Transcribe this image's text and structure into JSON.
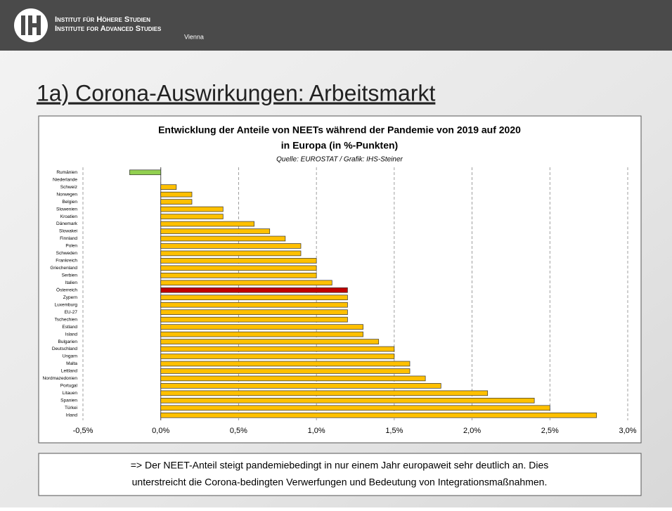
{
  "header": {
    "line1": "Institut für Höhere Studien",
    "line2": "Institute for Advanced Studies",
    "line3": "Vienna"
  },
  "slide_title": "1a) Corona-Auswirkungen: Arbeitsmarkt",
  "chart_data": {
    "type": "hbar",
    "title": "Entwicklung der Anteile von NEETs während der Pandemie von 2019 auf 2020",
    "title_line2": "in Europa (in %-Punkten)",
    "subtitle": "Quelle: EUROSTAT / Grafik: IHS-Steiner",
    "categories": [
      "Rumänien",
      "Niederlande",
      "Schweiz",
      "Norwegen",
      "Belgien",
      "Slowenien",
      "Kroatien",
      "Dänemark",
      "Slowakei",
      "Finnland",
      "Polen",
      "Schweden",
      "Frankreich",
      "Griechenland",
      "Serbien",
      "Italien",
      "Österreich",
      "Zypern",
      "Luxemburg",
      "EU-27",
      "Tschechien",
      "Estland",
      "Island",
      "Bulgarien",
      "Deutschland",
      "Ungarn",
      "Malta",
      "Lettland",
      "Nordmazedonien",
      "Portugal",
      "Litauen",
      "Spanien",
      "Türkei",
      "Irland"
    ],
    "values": [
      -0.2,
      0,
      0.1,
      0.2,
      0.2,
      0.4,
      0.4,
      0.6,
      0.7,
      0.8,
      0.9,
      0.9,
      1.0,
      1.0,
      1.0,
      1.1,
      1.2,
      1.2,
      1.2,
      1.2,
      1.2,
      1.3,
      1.3,
      1.4,
      1.5,
      1.5,
      1.6,
      1.6,
      1.7,
      1.8,
      2.1,
      2.4,
      2.5,
      2.8
    ],
    "colors": [
      "#92d050",
      "#ffc000",
      "#ffc000",
      "#ffc000",
      "#ffc000",
      "#ffc000",
      "#ffc000",
      "#ffc000",
      "#ffc000",
      "#ffc000",
      "#ffc000",
      "#ffc000",
      "#ffc000",
      "#ffc000",
      "#ffc000",
      "#ffc000",
      "#c00000",
      "#ffc000",
      "#ffc000",
      "#ffc000",
      "#ffc000",
      "#ffc000",
      "#ffc000",
      "#ffc000",
      "#ffc000",
      "#ffc000",
      "#ffc000",
      "#ffc000",
      "#ffc000",
      "#ffc000",
      "#ffc000",
      "#ffc000",
      "#ffc000",
      "#ffc000"
    ],
    "xlim": [
      -0.5,
      3.0
    ],
    "xticks": [
      {
        "value": -0.5,
        "label": "-0,5%"
      },
      {
        "value": 0,
        "label": "0,0%"
      },
      {
        "value": 0.5,
        "label": "0,5%"
      },
      {
        "value": 1.0,
        "label": "1,0%"
      },
      {
        "value": 1.5,
        "label": "1,5%"
      },
      {
        "value": 2.0,
        "label": "2,0%"
      },
      {
        "value": 2.5,
        "label": "2,5%"
      },
      {
        "value": 3.0,
        "label": "3,0%"
      }
    ],
    "grid": true
  },
  "note": {
    "line1": "=> Der NEET-Anteil steigt pandemiebedingt in nur einem Jahr europaweit sehr deutlich an. Dies",
    "line2": "unterstreicht die Corona-bedingten Verwerfungen und Bedeutung von Integrationsmaßnahmen."
  }
}
